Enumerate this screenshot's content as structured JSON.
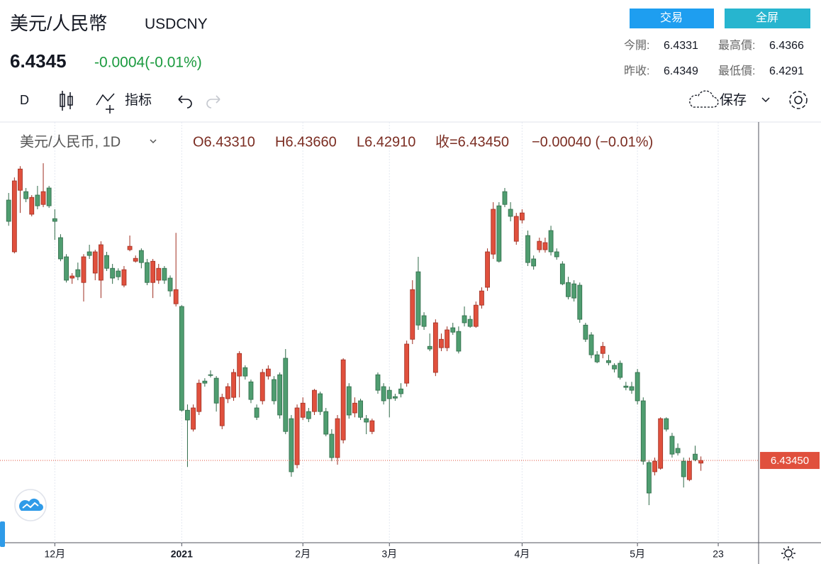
{
  "header": {
    "title": "美元/人民幣",
    "symbol": "USDCNY",
    "price": "6.4345",
    "change": "-0.0004(-0.01%)",
    "buttons": [
      "交易",
      "全屏"
    ],
    "stats": [
      {
        "label": "今開:",
        "value": "6.4331"
      },
      {
        "label": "最高價:",
        "value": "6.4366"
      },
      {
        "label": "昨收:",
        "value": "6.4349"
      },
      {
        "label": "最低價:",
        "value": "6.4291"
      }
    ]
  },
  "toolbar": {
    "interval": "D",
    "indicators": "指标",
    "save": "保存"
  },
  "chart_data": {
    "type": "candlestick",
    "legend_title": "美元/人民币, 1D",
    "ohlc_legend": [
      "O6.43310",
      "H6.43660",
      "L6.42910",
      "收=6.43450",
      "−0.00040 (−0.01%)"
    ],
    "up_color": "#e0503d",
    "down_color": "#4f9d70",
    "xgrid": true,
    "xlim": [
      -1.5,
      130
    ],
    "ylim": [
      6.3916,
      6.611
    ],
    "xticks": [
      {
        "value": 8,
        "label": "12月"
      },
      {
        "value": 30,
        "label": "2021"
      },
      {
        "value": 51,
        "label": "2月"
      },
      {
        "value": 66,
        "label": "3月"
      },
      {
        "value": 89,
        "label": "4月"
      },
      {
        "value": 109,
        "label": "5月"
      },
      {
        "value": 123,
        "label": "23"
      }
    ],
    "last_price": {
      "value": 6.4345,
      "label": "6.43450"
    },
    "open": [
      6.5703,
      6.5433,
      6.5754,
      6.5747,
      6.5629,
      6.5729,
      6.568,
      6.5766,
      6.5606,
      6.5507,
      6.5407,
      6.5296,
      6.534,
      6.5273,
      6.5433,
      6.5322,
      6.5285,
      6.5414,
      6.5347,
      6.5333,
      6.5259,
      6.5444,
      6.5384,
      6.544,
      6.5377,
      6.5273,
      6.5285,
      6.5347,
      6.5296,
      6.5162,
      6.5148,
      6.4607,
      6.4508,
      6.46,
      6.4759,
      6.4792,
      6.4774,
      6.4526,
      6.4667,
      6.4674,
      6.4785,
      6.4829,
      6.4755,
      6.4619,
      6.4656,
      6.4785,
      6.4767,
      6.4792,
      6.4878,
      6.4563,
      6.4323,
      6.457,
      6.46,
      6.46,
      6.4693,
      6.46,
      6.4482,
      6.436,
      6.4452,
      6.473,
      6.4593,
      6.4656,
      6.4563,
      6.4496,
      6.4792,
      6.473,
      6.4711,
      6.4678,
      6.4718,
      6.4748,
      6.4977,
      6.5329,
      6.51,
      6.494,
      6.4804,
      6.4933,
      6.4933,
      6.5037,
      6.5018,
      6.51,
      6.5081,
      6.5044,
      6.5155,
      6.5248,
      6.5421,
      6.5673,
      6.5747,
      6.5655,
      6.5488,
      6.5599,
      6.5518,
      6.5396,
      6.5444,
      6.5444,
      6.5544,
      6.5433,
      6.537,
      6.5273,
      6.5266,
      6.5259,
      6.5051,
      6.5,
      6.4896,
      6.4903,
      6.4866,
      6.4841,
      6.4852,
      6.4733,
      6.473,
      6.4804,
      6.4656,
      6.4334,
      6.4286,
      6.4304,
      6.4563,
      6.4471,
      6.4408,
      6.4341,
      6.4245,
      6.4378,
      6.4331
    ],
    "high": [
      6.574,
      6.5821,
      6.588,
      6.5766,
      6.5729,
      6.5777,
      6.5895,
      6.5777,
      6.5655,
      6.5525,
      6.5421,
      6.5322,
      6.5377,
      6.5421,
      6.547,
      6.5444,
      6.5488,
      6.5433,
      6.537,
      6.5347,
      6.5359,
      6.5518,
      6.5414,
      6.5451,
      6.5396,
      6.5396,
      6.537,
      6.5359,
      6.531,
      6.5532,
      6.5155,
      6.4637,
      6.4637,
      6.4767,
      6.4774,
      6.4815,
      6.4785,
      6.4693,
      6.4748,
      6.4822,
      6.4915,
      6.4841,
      6.4767,
      6.4637,
      6.4822,
      6.4841,
      6.4785,
      6.4804,
      6.4926,
      6.4582,
      6.4637,
      6.4674,
      6.4619,
      6.4718,
      6.4704,
      6.4619,
      6.4508,
      6.4582,
      6.4878,
      6.4748,
      6.4674,
      6.4667,
      6.4582,
      6.4563,
      6.4804,
      6.4748,
      6.473,
      6.4693,
      6.4748,
      6.497,
      6.5285,
      6.5407,
      6.5118,
      6.5007,
      6.5081,
      6.5007,
      6.5044,
      6.5063,
      6.5044,
      6.5148,
      6.51,
      6.5174,
      6.5248,
      6.5451,
      6.5692,
      6.5692,
      6.5766,
      6.5692,
      6.5636,
      6.5655,
      6.5544,
      6.5414,
      6.5507,
      6.5507,
      6.5569,
      6.5451,
      6.5384,
      6.5303,
      6.5285,
      6.5273,
      6.5063,
      6.5014,
      6.4915,
      6.4963,
      6.4896,
      6.4852,
      6.4866,
      6.4755,
      6.4755,
      6.4822,
      6.4674,
      6.4348,
      6.436,
      6.457,
      6.457,
      6.4489,
      6.4434,
      6.436,
      6.436,
      6.4422,
      6.4366
    ],
    "low": [
      6.5569,
      6.5425,
      6.5636,
      6.5692,
      6.5618,
      6.5655,
      6.5666,
      6.5662,
      6.5495,
      6.5384,
      6.5273,
      6.5266,
      6.5285,
      6.5174,
      6.5396,
      6.5285,
      6.5192,
      6.5333,
      6.5266,
      6.5285,
      6.5248,
      6.5436,
      6.5377,
      6.5347,
      6.5259,
      6.5192,
      6.5266,
      6.5266,
      6.5199,
      6.5148,
      6.46,
      6.4311,
      6.4496,
      6.4582,
      6.473,
      6.4778,
      6.46,
      6.4508,
      6.4644,
      6.4656,
      6.4674,
      6.4767,
      6.4644,
      6.4556,
      6.4637,
      6.4767,
      6.4637,
      6.4563,
      6.4482,
      6.426,
      6.4304,
      6.4556,
      6.4545,
      6.4582,
      6.4582,
      6.4471,
      6.4341,
      6.4323,
      6.4434,
      6.4563,
      6.457,
      6.4556,
      6.4482,
      6.4482,
      6.4693,
      6.4637,
      6.457,
      6.4656,
      6.4674,
      6.473,
      6.4952,
      6.5026,
      6.5026,
      6.4915,
      6.4785,
      6.4915,
      6.4915,
      6.5,
      6.4903,
      6.5044,
      6.5037,
      6.5037,
      6.5137,
      6.5229,
      6.5396,
      6.5377,
      6.5666,
      6.5592,
      6.547,
      6.5581,
      6.5359,
      6.534,
      6.5429,
      6.5429,
      6.5414,
      6.5392,
      6.5259,
      6.5185,
      6.5174,
      6.5063,
      6.4963,
      6.4878,
      6.4852,
      6.4878,
      6.4841,
      6.4804,
      6.4767,
      6.4711,
      6.4693,
      6.4637,
      6.4323,
      6.4112,
      6.4267,
      6.4297,
      6.4496,
      6.436,
      6.4371,
      6.4204,
      6.4237,
      6.4341,
      6.4291
    ],
    "close": [
      6.5592,
      6.5803,
      6.5865,
      6.571,
      6.5717,
      6.5673,
      6.5747,
      6.5673,
      6.5592,
      6.5396,
      6.5285,
      6.5307,
      6.5303,
      6.5407,
      6.5414,
      6.5433,
      6.547,
      6.5347,
      6.5296,
      6.5303,
      6.534,
      6.5462,
      6.5399,
      6.5377,
      6.5273,
      6.5384,
      6.5347,
      6.5285,
      6.5229,
      6.5236,
      6.4607,
      6.4556,
      6.4619,
      6.4748,
      6.4748,
      6.4789,
      6.4644,
      6.4674,
      6.473,
      6.4804,
      6.4903,
      6.4785,
      6.4663,
      6.457,
      6.4804,
      6.4822,
      6.4656,
      6.4582,
      6.4496,
      6.4286,
      6.4619,
      6.4644,
      6.4563,
      6.4711,
      6.46,
      6.4482,
      6.436,
      6.4563,
      6.487,
      6.4582,
      6.4644,
      6.457,
      6.4545,
      6.4552,
      6.4711,
      6.4656,
      6.4667,
      6.467,
      6.4693,
      6.4952,
      6.5236,
      6.5051,
      6.5044,
      6.4926,
      6.5063,
      6.4977,
      6.5026,
      6.5014,
      6.4915,
      6.5063,
      6.5044,
      6.5155,
      6.5229,
      6.5433,
      6.5655,
      6.5384,
      6.568,
      6.5618,
      6.5618,
      6.5636,
      6.5377,
      6.5359,
      6.5488,
      6.5481,
      6.5433,
      6.5407,
      6.5266,
      6.5199,
      6.5192,
      6.5081,
      6.4977,
      6.4896,
      6.4859,
      6.494,
      6.4855,
      6.4822,
      6.4778,
      6.4726,
      6.4711,
      6.4656,
      6.4341,
      6.4175,
      6.4341,
      6.4563,
      6.4508,
      6.4378,
      6.4385,
      6.426,
      6.4341,
      6.4349,
      6.4345
    ]
  }
}
